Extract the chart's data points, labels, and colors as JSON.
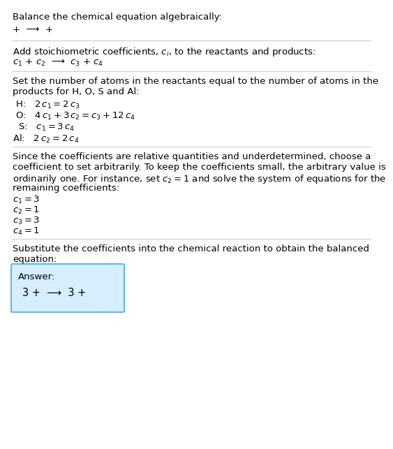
{
  "title": "Balance the chemical equation algebraically:",
  "line1": "+  ⟶  +",
  "section2_title": "Add stoichiometric coefficients, $c_i$, to the reactants and products:",
  "line2": "$c_1$ + $c_2$  ⟶  $c_3$ + $c_4$",
  "section3_line1": "Set the number of atoms in the reactants equal to the number of atoms in the",
  "section3_line2": "products for H, O, S and Al:",
  "equations": [
    " H:   $2\\,c_1 = 2\\,c_3$",
    " O:   $4\\,c_1 + 3\\,c_2 = c_3 + 12\\,c_4$",
    "  S:   $c_1 = 3\\,c_4$",
    "Al:   $2\\,c_2 = 2\\,c_4$"
  ],
  "section4_line1": "Since the coefficients are relative quantities and underdetermined, choose a",
  "section4_line2": "coefficient to set arbitrarily. To keep the coefficients small, the arbitrary value is",
  "section4_line3": "ordinarily one. For instance, set $c_2 = 1$ and solve the system of equations for the",
  "section4_line4": "remaining coefficients:",
  "coefficients": [
    "$c_1 = 3$",
    "$c_2 = 1$",
    "$c_3 = 3$",
    "$c_4 = 1$"
  ],
  "section5_line1": "Substitute the coefficients into the chemical reaction to obtain the balanced",
  "section5_line2": "equation:",
  "answer_label": "Answer:",
  "answer_eq": "3 +  ⟶  3 +",
  "bg_color": "#ffffff",
  "text_color": "#000000",
  "answer_box_color": "#d6eeff",
  "answer_box_border": "#5bb8f5",
  "divider_color": "#cccccc",
  "font_size": 9.5
}
